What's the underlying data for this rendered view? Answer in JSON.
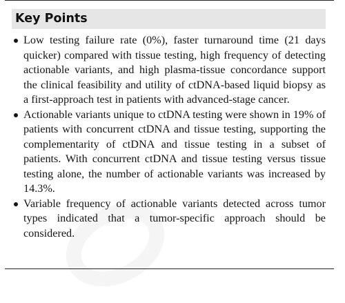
{
  "box": {
    "title": "Key Points",
    "points": [
      "Low testing failure rate (0%), faster turnaround time (21 days quicker) compared with tissue testing, high frequency of detecting actionable variants, and high plasma-tissue concordance support the clinical feasibility and utility of ctDNA-based liquid biopsy as a first-approach test in pa­tients with advanced-stage cancer.",
      "Actionable variants unique to ctDNA testing were shown in 19% of patients with concurrent ctDNA and tissue testing, supporting the complementarity of ctDNA and tissue testing in a subset of patients. With concurrent ctDNA and tissue testing versus tissue testing alone, the number of actionable variants was increased by 14.3%.",
      "Variable frequency of actionable variants detected across tumor types indicated that a tumor-specific approach should be considered."
    ]
  },
  "bullet_icon": "filled-circle-bullet"
}
